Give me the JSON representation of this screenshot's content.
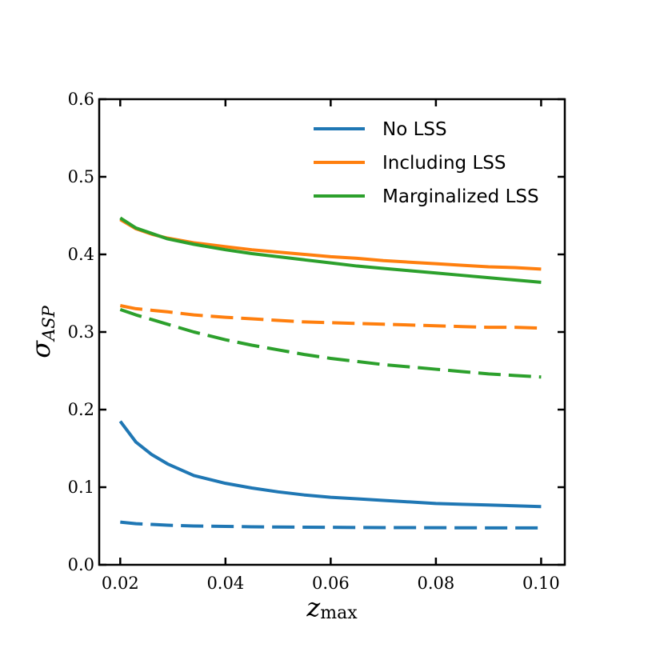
{
  "chart_data": {
    "type": "line",
    "title": "",
    "xlabel": {
      "base": "z",
      "sub": "max"
    },
    "ylabel": {
      "base": "σ",
      "sub": "ASP"
    },
    "xlim": [
      0.016,
      0.1045
    ],
    "ylim": [
      0.0,
      0.6
    ],
    "xticks": [
      {
        "value": 0.02,
        "label": "0.02"
      },
      {
        "value": 0.04,
        "label": "0.04"
      },
      {
        "value": 0.06,
        "label": "0.06"
      },
      {
        "value": 0.08,
        "label": "0.08"
      },
      {
        "value": 0.1,
        "label": "0.10"
      }
    ],
    "yticks": [
      {
        "value": 0.0,
        "label": "0.0"
      },
      {
        "value": 0.1,
        "label": "0.1"
      },
      {
        "value": 0.2,
        "label": "0.2"
      },
      {
        "value": 0.3,
        "label": "0.3"
      },
      {
        "value": 0.4,
        "label": "0.4"
      },
      {
        "value": 0.5,
        "label": "0.5"
      },
      {
        "value": 0.6,
        "label": "0.6"
      }
    ],
    "x": [
      0.02,
      0.023,
      0.026,
      0.029,
      0.034,
      0.04,
      0.045,
      0.05,
      0.055,
      0.06,
      0.065,
      0.07,
      0.075,
      0.08,
      0.085,
      0.09,
      0.095,
      0.1
    ],
    "legend": {
      "placement": "top-right",
      "entries": [
        "No LSS",
        "Including LSS",
        "Marginalized LSS"
      ]
    },
    "series": [
      {
        "name": "No LSS",
        "color": "#1f77b4",
        "style": "solid",
        "values": [
          0.185,
          0.158,
          0.142,
          0.13,
          0.115,
          0.105,
          0.099,
          0.094,
          0.09,
          0.087,
          0.085,
          0.083,
          0.081,
          0.079,
          0.078,
          0.077,
          0.076,
          0.075
        ]
      },
      {
        "name": "Including LSS",
        "color": "#ff7f0e",
        "style": "solid",
        "values": [
          0.445,
          0.433,
          0.426,
          0.421,
          0.415,
          0.41,
          0.406,
          0.403,
          0.4,
          0.397,
          0.395,
          0.392,
          0.39,
          0.388,
          0.386,
          0.384,
          0.383,
          0.381
        ]
      },
      {
        "name": "Marginalized LSS",
        "color": "#2ca02c",
        "style": "solid",
        "values": [
          0.447,
          0.434,
          0.427,
          0.42,
          0.413,
          0.406,
          0.401,
          0.397,
          0.393,
          0.389,
          0.385,
          0.382,
          0.379,
          0.376,
          0.373,
          0.37,
          0.367,
          0.364
        ]
      },
      {
        "name": "No LSS (dashed)",
        "color": "#1f77b4",
        "style": "dashed",
        "values": [
          0.055,
          0.053,
          0.052,
          0.051,
          0.05,
          0.0495,
          0.049,
          0.0487,
          0.0485,
          0.0483,
          0.0481,
          0.048,
          0.0479,
          0.0478,
          0.0477,
          0.0476,
          0.0475,
          0.0475
        ]
      },
      {
        "name": "Including LSS (dashed)",
        "color": "#ff7f0e",
        "style": "dashed",
        "values": [
          0.334,
          0.33,
          0.328,
          0.326,
          0.322,
          0.319,
          0.317,
          0.315,
          0.313,
          0.312,
          0.311,
          0.31,
          0.309,
          0.308,
          0.307,
          0.306,
          0.306,
          0.305
        ]
      },
      {
        "name": "Marginalized LSS (dashed)",
        "color": "#2ca02c",
        "style": "dashed",
        "values": [
          0.329,
          0.322,
          0.316,
          0.31,
          0.3,
          0.29,
          0.283,
          0.277,
          0.271,
          0.266,
          0.262,
          0.258,
          0.255,
          0.252,
          0.249,
          0.246,
          0.244,
          0.242
        ]
      }
    ]
  }
}
